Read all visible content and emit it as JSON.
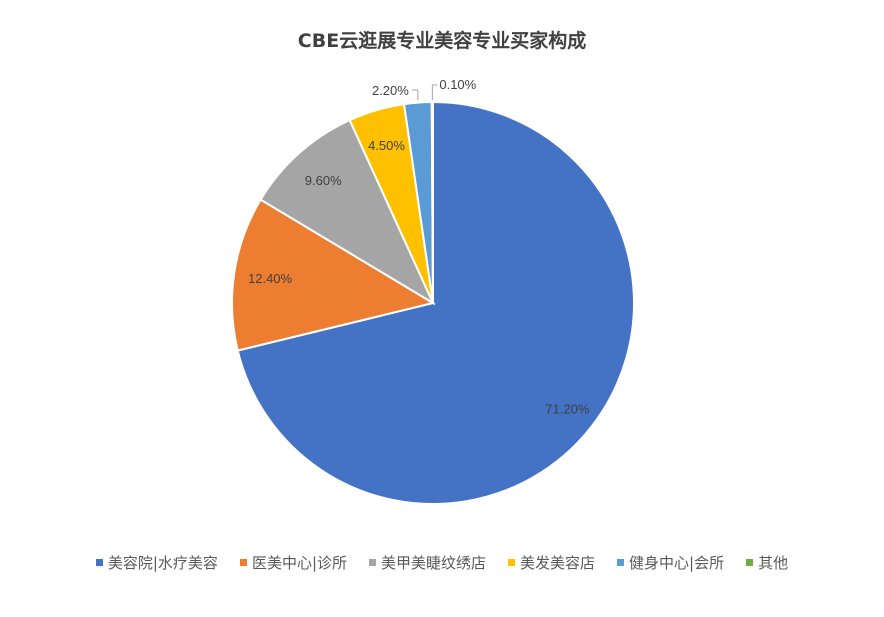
{
  "chart_data": {
    "type": "pie",
    "title": "CBE云逛展专业美容专业买家构成",
    "categories": [
      "美容院|水疗美容",
      "医美中心|诊所",
      "美甲美睫纹绣店",
      "美发美容店",
      "健身中心|会所",
      "其他"
    ],
    "values": [
      71.2,
      12.4,
      9.6,
      4.5,
      2.2,
      0.1
    ],
    "data_labels": [
      "71.20%",
      "12.40%",
      "9.60%",
      "4.50%",
      "2.20%",
      "0.10%"
    ],
    "colors": [
      "#4472C4",
      "#ED7D31",
      "#A5A5A5",
      "#FFC000",
      "#5B9BD5",
      "#70AD47"
    ],
    "start_angle": "top, clockwise",
    "legend_position": "bottom"
  }
}
